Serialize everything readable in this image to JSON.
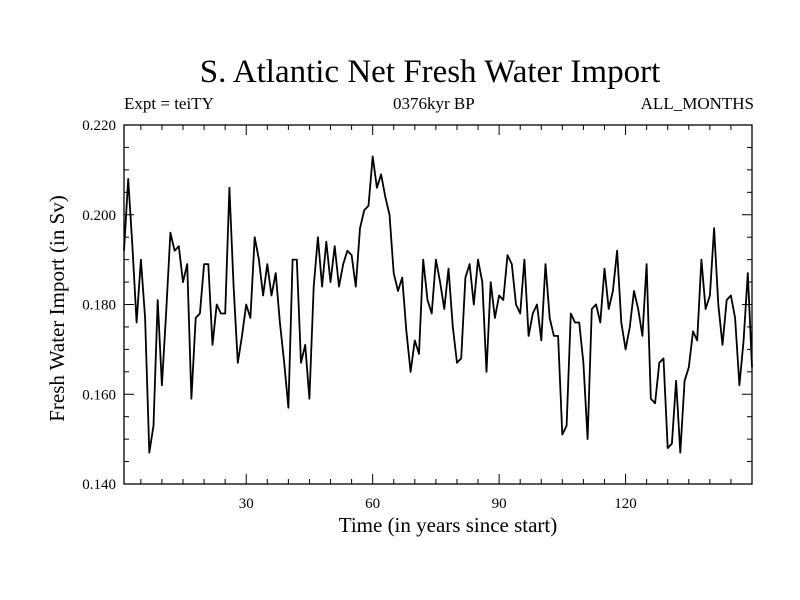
{
  "chart_data": {
    "type": "line",
    "title": "S. Atlantic Net Fresh Water Import",
    "subtitle_left": "Expt = teiTY",
    "subtitle_center": "0376kyr BP",
    "subtitle_right": "ALL_MONTHS",
    "xlabel": "Time (in years since start)",
    "ylabel": "Fresh Water Import (in Sv)",
    "xlim": [
      1,
      150
    ],
    "ylim": [
      0.14,
      0.22
    ],
    "xticks": [
      30,
      60,
      90,
      120
    ],
    "xtick_labels": [
      "30",
      "60",
      "90",
      "120"
    ],
    "yticks": [
      0.14,
      0.16,
      0.18,
      0.2,
      0.22
    ],
    "ytick_labels": [
      "0.140",
      "0.160",
      "0.180",
      "0.200",
      "0.220"
    ],
    "series": [
      {
        "name": "Fresh Water Import",
        "x_start": 1,
        "x_step": 1,
        "values": [
          0.192,
          0.208,
          0.193,
          0.176,
          0.19,
          0.177,
          0.147,
          0.153,
          0.181,
          0.162,
          0.178,
          0.196,
          0.192,
          0.193,
          0.185,
          0.189,
          0.159,
          0.177,
          0.178,
          0.189,
          0.189,
          0.171,
          0.18,
          0.178,
          0.178,
          0.206,
          0.184,
          0.167,
          0.173,
          0.18,
          0.177,
          0.195,
          0.19,
          0.182,
          0.189,
          0.182,
          0.187,
          0.176,
          0.167,
          0.157,
          0.19,
          0.19,
          0.167,
          0.171,
          0.159,
          0.184,
          0.195,
          0.184,
          0.194,
          0.185,
          0.193,
          0.184,
          0.189,
          0.192,
          0.191,
          0.184,
          0.197,
          0.201,
          0.202,
          0.213,
          0.206,
          0.209,
          0.204,
          0.2,
          0.187,
          0.183,
          0.186,
          0.174,
          0.165,
          0.172,
          0.169,
          0.19,
          0.181,
          0.178,
          0.19,
          0.185,
          0.179,
          0.188,
          0.175,
          0.167,
          0.168,
          0.186,
          0.189,
          0.18,
          0.19,
          0.185,
          0.165,
          0.185,
          0.177,
          0.182,
          0.181,
          0.191,
          0.189,
          0.18,
          0.178,
          0.19,
          0.173,
          0.178,
          0.18,
          0.172,
          0.189,
          0.177,
          0.173,
          0.173,
          0.151,
          0.153,
          0.178,
          0.176,
          0.176,
          0.167,
          0.15,
          0.179,
          0.18,
          0.176,
          0.188,
          0.179,
          0.183,
          0.192,
          0.176,
          0.17,
          0.175,
          0.183,
          0.179,
          0.173,
          0.189,
          0.159,
          0.158,
          0.167,
          0.168,
          0.148,
          0.149,
          0.163,
          0.147,
          0.163,
          0.166,
          0.174,
          0.172,
          0.19,
          0.179,
          0.182,
          0.197,
          0.18,
          0.171,
          0.181,
          0.182,
          0.177,
          0.162,
          0.172,
          0.187,
          0.166
        ]
      }
    ]
  }
}
